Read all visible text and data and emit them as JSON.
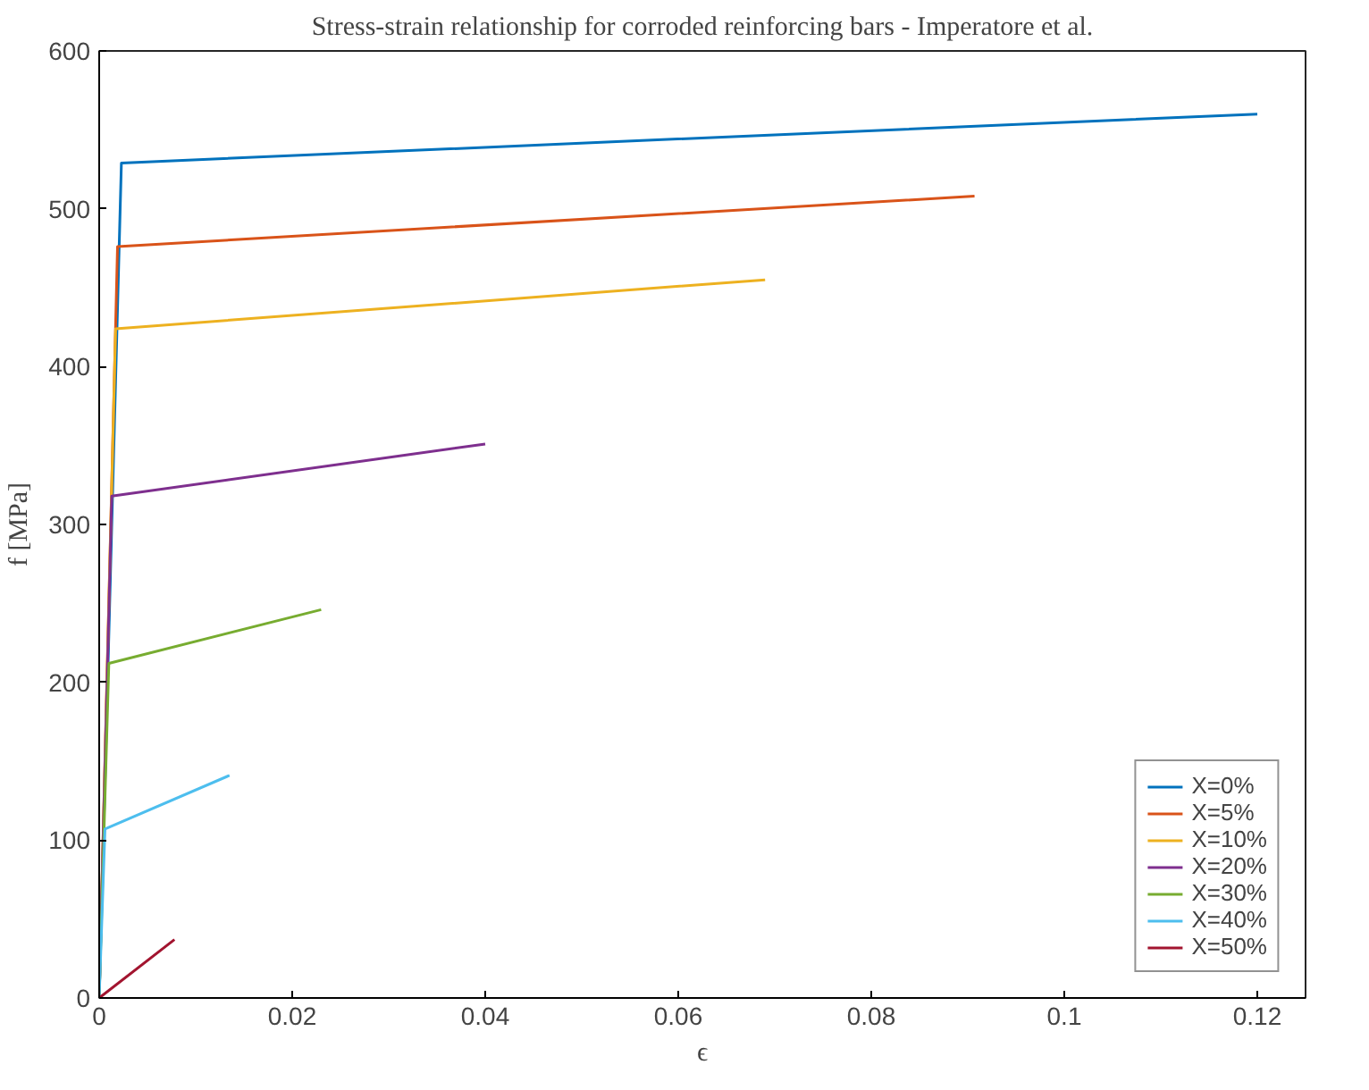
{
  "chart_data": {
    "type": "line",
    "title": "Stress-strain relationship for corroded reinforcing bars - Imperatore et al.",
    "xlabel": "ϵ",
    "ylabel": "f [MPa]",
    "xlim": [
      0,
      0.125
    ],
    "ylim": [
      0,
      600
    ],
    "xticks": [
      0,
      0.02,
      0.04,
      0.06,
      0.08,
      0.1,
      0.12
    ],
    "yticks": [
      0,
      100,
      200,
      300,
      400,
      500,
      600
    ],
    "grid": false,
    "legend": "bottom right",
    "series": [
      {
        "name": "X=0%",
        "color": "#0072bd",
        "x": [
          0,
          0.0023,
          0.12
        ],
        "values": [
          0,
          529,
          560
        ]
      },
      {
        "name": "X=5%",
        "color": "#d95319",
        "x": [
          0,
          0.0019,
          0.0907
        ],
        "values": [
          0,
          476,
          508
        ]
      },
      {
        "name": "X=10%",
        "color": "#edb120",
        "x": [
          0,
          0.0017,
          0.069
        ],
        "values": [
          0,
          424,
          455
        ]
      },
      {
        "name": "X=20%",
        "color": "#7e2f8e",
        "x": [
          0,
          0.0013,
          0.04
        ],
        "values": [
          0,
          318,
          351
        ]
      },
      {
        "name": "X=30%",
        "color": "#77ac30",
        "x": [
          0,
          0.001,
          0.023
        ],
        "values": [
          0,
          212,
          246
        ]
      },
      {
        "name": "X=40%",
        "color": "#4dbeee",
        "x": [
          0,
          0.0006,
          0.0135
        ],
        "values": [
          0,
          107,
          141
        ]
      },
      {
        "name": "X=50%",
        "color": "#a2142f",
        "x": [
          0,
          0.0078
        ],
        "values": [
          0,
          37
        ]
      }
    ]
  }
}
